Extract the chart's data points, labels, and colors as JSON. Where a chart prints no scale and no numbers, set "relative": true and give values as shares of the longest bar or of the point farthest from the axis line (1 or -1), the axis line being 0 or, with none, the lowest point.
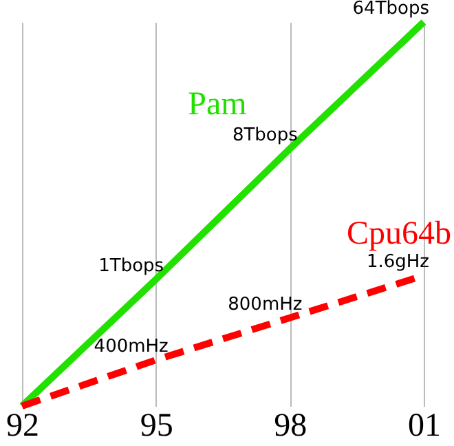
{
  "chart_data": {
    "type": "line",
    "relative": true,
    "x": [
      1992,
      1995,
      1998,
      2001
    ],
    "xlim": [
      1992,
      2001
    ],
    "xticks": [
      {
        "value": 1992,
        "label": "92"
      },
      {
        "value": 1995,
        "label": "95"
      },
      {
        "value": 1998,
        "label": "98"
      },
      {
        "value": 2001,
        "label": "01"
      }
    ],
    "series": [
      {
        "name": "Pam",
        "color": "#22e000",
        "values": [
          0,
          0.33,
          0.67,
          1
        ],
        "line_style": "solid"
      },
      {
        "name": "Cpu64b",
        "color": "#ff0000",
        "values": [
          0,
          0.12,
          0.23,
          0.34
        ],
        "line_style": "dashed"
      }
    ],
    "annotations": [
      {
        "text": "1Tbops",
        "x": 1995,
        "y": 0.33
      },
      {
        "text": "8Tbops",
        "x": 1998,
        "y": 0.67
      },
      {
        "text": "64Tbops",
        "x": 2001,
        "y": 1
      },
      {
        "text": "400mHz",
        "x": 1995,
        "y": 0.12
      },
      {
        "text": "800mHz",
        "x": 1998,
        "y": 0.23
      },
      {
        "text": "1.6gHz",
        "x": 2001,
        "y": 0.34
      }
    ],
    "grid": "x",
    "marker": "none",
    "legend": false
  }
}
